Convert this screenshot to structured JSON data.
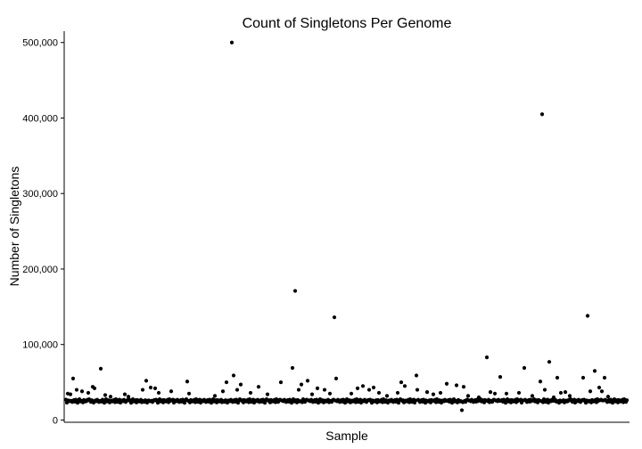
{
  "chart_data": {
    "type": "scatter",
    "title": "Count of Singletons Per Genome",
    "xlabel": "Sample",
    "ylabel": "Number of Singletons",
    "ylim": [
      -3000,
      515000
    ],
    "xlim": [
      -2,
      632
    ],
    "y_ticks": [
      0,
      100000,
      200000,
      300000,
      400000,
      500000
    ],
    "y_tick_labels": [
      "0",
      "100,000",
      "200,000",
      "300,000",
      "400,000",
      "500,000"
    ],
    "grid": false,
    "x_ticks_shown": false,
    "n_points": 630,
    "baseline_values": [
      27000,
      24500,
      26000,
      23500,
      25500,
      24000,
      26500,
      23000,
      25000,
      24800,
      27500,
      23800,
      26200,
      24300,
      25800,
      22800,
      26800,
      24600,
      25300,
      23300
    ],
    "outliers": [
      {
        "x": 2,
        "y": 35000
      },
      {
        "x": 5,
        "y": 34000
      },
      {
        "x": 8,
        "y": 55000
      },
      {
        "x": 12,
        "y": 40000
      },
      {
        "x": 18,
        "y": 38000
      },
      {
        "x": 25,
        "y": 36000
      },
      {
        "x": 30,
        "y": 44000
      },
      {
        "x": 32,
        "y": 42000
      },
      {
        "x": 39,
        "y": 68000
      },
      {
        "x": 44,
        "y": 33000
      },
      {
        "x": 50,
        "y": 31000
      },
      {
        "x": 66,
        "y": 34000
      },
      {
        "x": 70,
        "y": 31000
      },
      {
        "x": 86,
        "y": 40000
      },
      {
        "x": 90,
        "y": 52000
      },
      {
        "x": 95,
        "y": 43000
      },
      {
        "x": 100,
        "y": 42000
      },
      {
        "x": 104,
        "y": 36000
      },
      {
        "x": 118,
        "y": 38000
      },
      {
        "x": 136,
        "y": 51000
      },
      {
        "x": 138,
        "y": 35000
      },
      {
        "x": 167,
        "y": 32000
      },
      {
        "x": 176,
        "y": 38000
      },
      {
        "x": 180,
        "y": 50000
      },
      {
        "x": 186,
        "y": 500000
      },
      {
        "x": 188,
        "y": 59000
      },
      {
        "x": 192,
        "y": 40000
      },
      {
        "x": 196,
        "y": 47000
      },
      {
        "x": 207,
        "y": 36000
      },
      {
        "x": 216,
        "y": 44000
      },
      {
        "x": 226,
        "y": 34000
      },
      {
        "x": 241,
        "y": 50000
      },
      {
        "x": 254,
        "y": 69000
      },
      {
        "x": 257,
        "y": 171000
      },
      {
        "x": 261,
        "y": 40000
      },
      {
        "x": 264,
        "y": 47000
      },
      {
        "x": 271,
        "y": 52000
      },
      {
        "x": 276,
        "y": 34000
      },
      {
        "x": 282,
        "y": 42000
      },
      {
        "x": 290,
        "y": 40000
      },
      {
        "x": 296,
        "y": 35000
      },
      {
        "x": 301,
        "y": 136000
      },
      {
        "x": 303,
        "y": 55000
      },
      {
        "x": 320,
        "y": 35000
      },
      {
        "x": 327,
        "y": 42000
      },
      {
        "x": 333,
        "y": 45000
      },
      {
        "x": 340,
        "y": 40000
      },
      {
        "x": 345,
        "y": 43000
      },
      {
        "x": 351,
        "y": 36000
      },
      {
        "x": 360,
        "y": 32000
      },
      {
        "x": 372,
        "y": 36000
      },
      {
        "x": 376,
        "y": 50000
      },
      {
        "x": 380,
        "y": 45000
      },
      {
        "x": 393,
        "y": 59000
      },
      {
        "x": 394,
        "y": 40000
      },
      {
        "x": 405,
        "y": 37000
      },
      {
        "x": 412,
        "y": 34000
      },
      {
        "x": 420,
        "y": 36000
      },
      {
        "x": 427,
        "y": 48000
      },
      {
        "x": 438,
        "y": 46000
      },
      {
        "x": 444,
        "y": 13000
      },
      {
        "x": 446,
        "y": 44000
      },
      {
        "x": 451,
        "y": 32000
      },
      {
        "x": 463,
        "y": 30000
      },
      {
        "x": 472,
        "y": 83000
      },
      {
        "x": 476,
        "y": 37000
      },
      {
        "x": 481,
        "y": 35000
      },
      {
        "x": 487,
        "y": 57000
      },
      {
        "x": 494,
        "y": 35000
      },
      {
        "x": 508,
        "y": 36000
      },
      {
        "x": 514,
        "y": 69000
      },
      {
        "x": 523,
        "y": 32000
      },
      {
        "x": 532,
        "y": 51000
      },
      {
        "x": 534,
        "y": 405000
      },
      {
        "x": 537,
        "y": 40000
      },
      {
        "x": 542,
        "y": 77000
      },
      {
        "x": 547,
        "y": 30000
      },
      {
        "x": 551,
        "y": 56000
      },
      {
        "x": 555,
        "y": 36000
      },
      {
        "x": 560,
        "y": 37000
      },
      {
        "x": 565,
        "y": 32000
      },
      {
        "x": 580,
        "y": 56000
      },
      {
        "x": 585,
        "y": 138000
      },
      {
        "x": 588,
        "y": 38000
      },
      {
        "x": 593,
        "y": 65000
      },
      {
        "x": 598,
        "y": 43000
      },
      {
        "x": 601,
        "y": 38000
      },
      {
        "x": 604,
        "y": 56000
      },
      {
        "x": 608,
        "y": 31000
      }
    ]
  }
}
